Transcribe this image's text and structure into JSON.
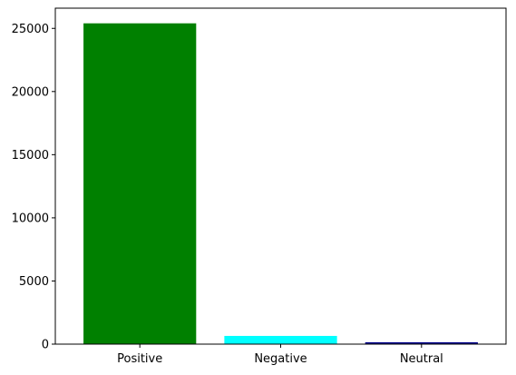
{
  "chart_data": {
    "type": "bar",
    "categories": [
      "Positive",
      "Negative",
      "Neutral"
    ],
    "values": [
      25400,
      650,
      150
    ],
    "colors": [
      "#008000",
      "#00ffff",
      "#00008b"
    ],
    "ylim": [
      0,
      26600
    ],
    "yticks": [
      0,
      5000,
      10000,
      15000,
      20000,
      25000
    ],
    "ytick_labels": [
      "0",
      "5000",
      "10000",
      "15000",
      "20000",
      "25000"
    ],
    "grid": false,
    "title": "",
    "xlabel": "",
    "ylabel": ""
  }
}
